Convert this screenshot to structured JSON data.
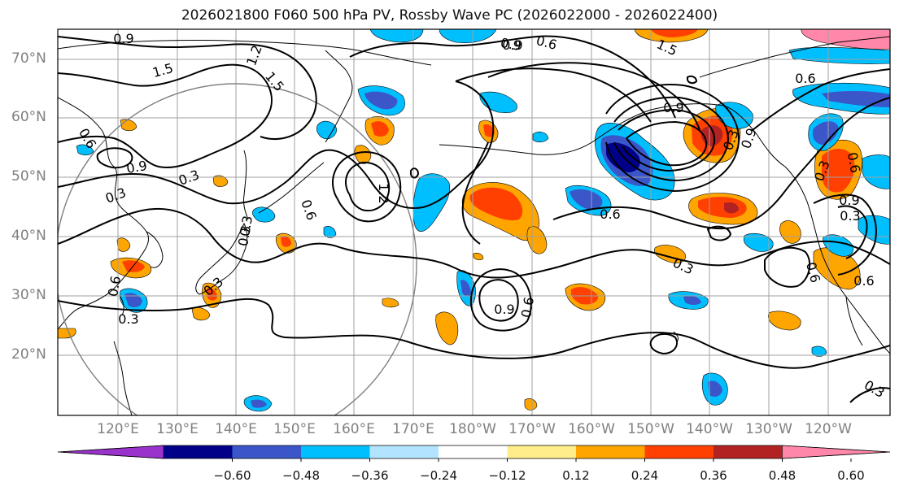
{
  "title": "2026021800 F060 500 hPa PV, Rossby Wave PC (2026022000 - 2026022400)",
  "lat_labels": [
    "70°N",
    "60°N",
    "50°N",
    "40°N",
    "30°N",
    "20°N"
  ],
  "lon_labels": [
    "120°E",
    "130°E",
    "140°E",
    "150°E",
    "160°E",
    "170°E",
    "180°W",
    "170°W",
    "160°W",
    "150°W",
    "140°W",
    "130°W",
    "120°W"
  ],
  "contour_labels": [
    "0.9",
    "0.9",
    "0.6",
    "1.5",
    "1.5",
    "1.2",
    "1.5",
    "0.9",
    "0.9",
    "0.9",
    "0.3",
    "0.3",
    "0.6",
    "1.2",
    "0.6",
    "0.3",
    "0.3",
    "0.6",
    "0.3",
    "0.3",
    "0.9",
    "0.6",
    "0.6",
    "0.3",
    "0.6",
    "0.6",
    "0.9",
    "0.3",
    "0.3",
    "0.3",
    "0.6",
    "0.6",
    "0.3",
    "0.9"
  ],
  "colorbar": {
    "labels": [
      "−0.60",
      "−0.48",
      "−0.36",
      "−0.24",
      "−0.12",
      "0.12",
      "0.24",
      "0.36",
      "0.48",
      "0.60"
    ],
    "colors": [
      "#9933cc",
      "#000088",
      "#3a56c9",
      "#00bfff",
      "#b3e4ff",
      "#ffffff",
      "#ffec8a",
      "#ffa500",
      "#ff4000",
      "#b22222",
      "#ff88aa"
    ]
  },
  "palette": {
    "neg1": "#00bfff",
    "neg2": "#3a56c9",
    "neg3": "#000088",
    "pos1": "#ffa500",
    "pos2": "#ff4000",
    "pos3": "#b22222",
    "contour": "#000000",
    "grid": "#a0a0a0",
    "coast": "#000000"
  }
}
